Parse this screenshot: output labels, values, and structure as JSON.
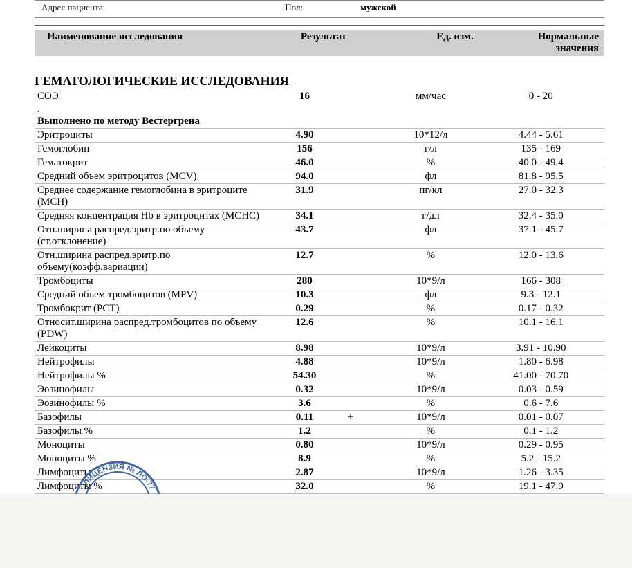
{
  "header": {
    "address_label": "Адрес пациента:",
    "sex_label": "Пол:",
    "sex_value": "мужской"
  },
  "column_headers": {
    "name": "Наименование исследования",
    "result": "Результат",
    "unit": "Ед. изм.",
    "range": "Нормальные значения"
  },
  "section_title": "ГЕМАТОЛОГИЧЕСКИЕ ИССЛЕДОВАНИЯ",
  "method_note": "Выполнено по методу Вестергрена",
  "rows": [
    {
      "name": "СОЭ",
      "result": "16",
      "flag": "",
      "unit": "мм/час",
      "range": "0 - 20",
      "noborder": true
    },
    {
      "method": true
    },
    {
      "name": "Эритроциты",
      "result": "4.90",
      "flag": "",
      "unit": "10*12/л",
      "range": "4.44 - 5.61"
    },
    {
      "name": "Гемоглобин",
      "result": "156",
      "flag": "",
      "unit": "г/л",
      "range": "135 - 169"
    },
    {
      "name": "Гематокрит",
      "result": "46.0",
      "flag": "",
      "unit": "%",
      "range": "40.0 - 49.4"
    },
    {
      "name": "Средний объем эритроцитов (MCV)",
      "result": "94.0",
      "flag": "",
      "unit": "фл",
      "range": "81.8 - 95.5"
    },
    {
      "name": "Среднее содержание гемоглобина в эритроците (MCH)",
      "result": "31.9",
      "flag": "",
      "unit": "пг/кл",
      "range": "27.0 - 32.3"
    },
    {
      "name": "Средняя концентрация Hb в эритроцитах (MCHC)",
      "result": "34.1",
      "flag": "",
      "unit": "г/дл",
      "range": "32.4 - 35.0"
    },
    {
      "name": "Отн.ширина распред.эритр.по объему (ст.отклонение)",
      "result": "43.7",
      "flag": "",
      "unit": "фл",
      "range": "37.1 - 45.7"
    },
    {
      "name": "Отн.ширина распред.эритр.по объему(коэфф.вариации)",
      "result": "12.7",
      "flag": "",
      "unit": "%",
      "range": "12.0 - 13.6"
    },
    {
      "name": "Тромбоциты",
      "result": "280",
      "flag": "",
      "unit": "10*9/л",
      "range": "166 - 308"
    },
    {
      "name": "Средний объем тромбоцитов (MPV)",
      "result": "10.3",
      "flag": "",
      "unit": "фл",
      "range": "9.3 - 12.1"
    },
    {
      "name": "Тромбокрит (PCT)",
      "result": "0.29",
      "flag": "",
      "unit": "%",
      "range": "0.17 - 0.32"
    },
    {
      "name": "Относит.ширина распред.тромбоцитов по объему (PDW)",
      "result": "12.6",
      "flag": "",
      "unit": "%",
      "range": "10.1 - 16.1"
    },
    {
      "name": "Лейкоциты",
      "result": "8.98",
      "flag": "",
      "unit": "10*9/л",
      "range": "3.91 - 10.90"
    },
    {
      "name": "Нейтрофилы",
      "result": "4.88",
      "flag": "",
      "unit": "10*9/л",
      "range": "1.80 - 6.98"
    },
    {
      "name": "Нейтрофилы %",
      "result": "54.30",
      "flag": "",
      "unit": "%",
      "range": "41.00 - 70.70"
    },
    {
      "name": "Эозинофилы",
      "result": "0.32",
      "flag": "",
      "unit": "10*9/л",
      "range": "0.03 - 0.59"
    },
    {
      "name": "Эозинофилы %",
      "result": "3.6",
      "flag": "",
      "unit": "%",
      "range": "0.6 - 7.6"
    },
    {
      "name": "Базофилы",
      "result": "0.11",
      "flag": "+",
      "unit": "10*9/л",
      "range": "0.01 - 0.07"
    },
    {
      "name": "Базофилы %",
      "result": "1.2",
      "flag": "",
      "unit": "%",
      "range": "0.1 - 1.2"
    },
    {
      "name": "Моноциты",
      "result": "0.80",
      "flag": "",
      "unit": "10*9/л",
      "range": "0.29 - 0.95"
    },
    {
      "name": "Моноциты %",
      "result": "8.9",
      "flag": "",
      "unit": "%",
      "range": "5.2 - 15.2"
    },
    {
      "name": "Лимфоциты",
      "result": "2.87",
      "flag": "",
      "unit": "10*9/л",
      "range": "1.26 - 3.35"
    },
    {
      "name": "Лимфоциты %",
      "result": "32.0",
      "flag": "",
      "unit": "%",
      "range": "19.1 - 47.9"
    }
  ],
  "seal_text": "ЛИЦЕНЗИЯ № ЛО-77",
  "style": {
    "header_bar_bg": "#cfcfcf",
    "row_border_color": "#bdbdbd",
    "page_bg": "#ffffff",
    "font_family": "Times New Roman",
    "title_fontsize_pt": 14,
    "body_fontsize_pt": 11
  }
}
